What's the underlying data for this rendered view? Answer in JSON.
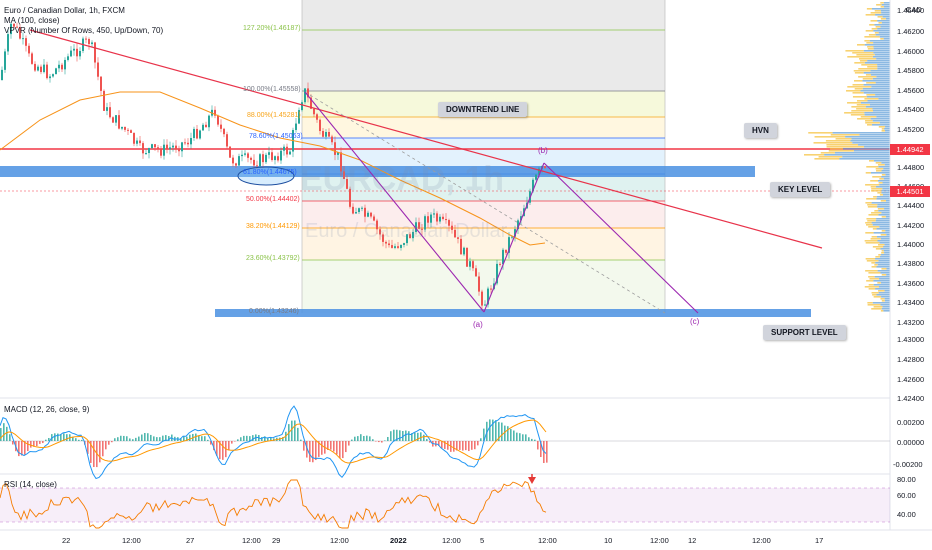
{
  "header": {
    "title": "Euro / Canadian Dollar, 1h, FXCM",
    "ma": "MA (100, close)",
    "vpvr": "VPVR (Number Of Rows, 450, Up/Down, 70)",
    "currency": "CAD"
  },
  "watermark": {
    "symbol": "EURCAD, 1h",
    "name": "Euro / Canadian Dollar"
  },
  "annotations": {
    "downtrend": "DOWNTREND LINE",
    "hvn": "HVN",
    "key_level": "KEY LEVEL",
    "support_level": "SUPPORT LEVEL"
  },
  "waves": {
    "a": "(a)",
    "b": "(b)",
    "c": "(c)"
  },
  "fib_levels": [
    {
      "label": "127.20%(1.46187)",
      "color": "#8bc34a"
    },
    {
      "label": "100.00%(1.45558)",
      "color": "#787b86"
    },
    {
      "label": "88.00%(1.45281)",
      "color": "#f7a41a"
    },
    {
      "label": "78.60%(1.45063)",
      "color": "#2962ff"
    },
    {
      "label": "61.80%(1.44675)",
      "color": "#2962ff"
    },
    {
      "label": "50.00%(1.44402)",
      "color": "#f23645"
    },
    {
      "label": "38.20%(1.44129)",
      "color": "#ff9800"
    },
    {
      "label": "23.60%(1.43792)",
      "color": "#8bc34a"
    },
    {
      "label": "0.00%(1.43246)",
      "color": "#787b86"
    }
  ],
  "price_axis": [
    "1.46400",
    "1.46200",
    "1.46000",
    "1.45800",
    "1.45600",
    "1.45400",
    "1.45200",
    "1.44800",
    "1.44600",
    "1.44400",
    "1.44200",
    "1.44000",
    "1.43800",
    "1.43600",
    "1.43400",
    "1.43200",
    "1.43000",
    "1.42800",
    "1.42600",
    "1.42400"
  ],
  "price_tags": {
    "hvn": "1.44942",
    "current": "1.44501"
  },
  "macd": {
    "label": "MACD (12, 26, close, 9)",
    "axis": [
      "0.00200",
      "0.00000",
      "-0.00200"
    ]
  },
  "rsi": {
    "label": "RSI (14, close)",
    "axis": [
      "80.00",
      "60.00",
      "40.00"
    ]
  },
  "time_axis": [
    "22",
    "12:00",
    "27",
    "12:00",
    "29",
    "12:00",
    "2022",
    "12:00",
    "5",
    "12:00",
    "10",
    "12:00",
    "12",
    "12:00",
    "17"
  ],
  "colors": {
    "up": "#26a69a",
    "down": "#ef5350",
    "ma": "#f7931a",
    "trend": "#e8334a",
    "wave": "#9c27b0",
    "zone": "#4a90e2",
    "macd": "#2196f3",
    "signal": "#ff9800",
    "rsi": "#f57c00"
  }
}
